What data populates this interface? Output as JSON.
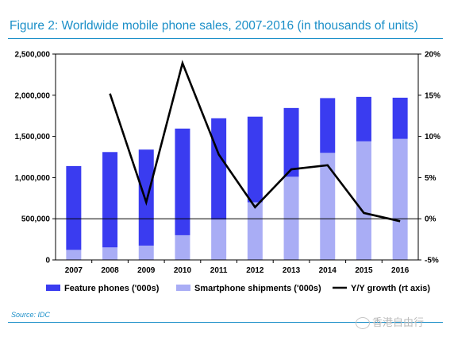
{
  "figure": {
    "title": "Figure 2: Worldwide mobile phone sales, 2007-2016 (in thousands of units)",
    "source": "Source: IDC",
    "watermark": "香港自由行"
  },
  "colors": {
    "feature": "#3a3cf0",
    "smartphone": "#a9adf5",
    "growth": "#000000",
    "accent": "#1b8fc8"
  },
  "chart_data": {
    "type": "bar",
    "stacked": true,
    "categories": [
      "2007",
      "2008",
      "2009",
      "2010",
      "2011",
      "2012",
      "2013",
      "2014",
      "2015",
      "2016"
    ],
    "series": [
      {
        "name": "Smartphone shipments ('000s)",
        "type": "bar",
        "axis": "left",
        "values": [
          122000,
          152000,
          174000,
          300000,
          490000,
          700000,
          1010000,
          1300000,
          1440000,
          1470000
        ]
      },
      {
        "name": "Feature phones ('000s)",
        "type": "bar",
        "axis": "left",
        "values": [
          1018000,
          1158000,
          1166000,
          1295000,
          1230000,
          1040000,
          835000,
          665000,
          540000,
          500000
        ]
      },
      {
        "name": "Y/Y growth (rt axis)",
        "type": "line",
        "axis": "right",
        "values": [
          null,
          15.2,
          2.0,
          18.9,
          7.8,
          1.4,
          6.0,
          6.5,
          0.7,
          -0.3
        ]
      }
    ],
    "legend_order": [
      "Feature phones ('000s)",
      "Smartphone shipments ('000s)",
      "Y/Y growth (rt axis)"
    ],
    "ylim": [
      0,
      2500000
    ],
    "y_ticks": [
      "0",
      "500,000",
      "1,000,000",
      "1,500,000",
      "2,000,000",
      "2,500,000"
    ],
    "y2lim": [
      -5,
      20
    ],
    "y2_ticks": [
      "-5%",
      "0%",
      "5%",
      "10%",
      "15%",
      "20%"
    ],
    "xlabel": "",
    "ylabel": "",
    "grid": false,
    "legend_position": "bottom"
  }
}
